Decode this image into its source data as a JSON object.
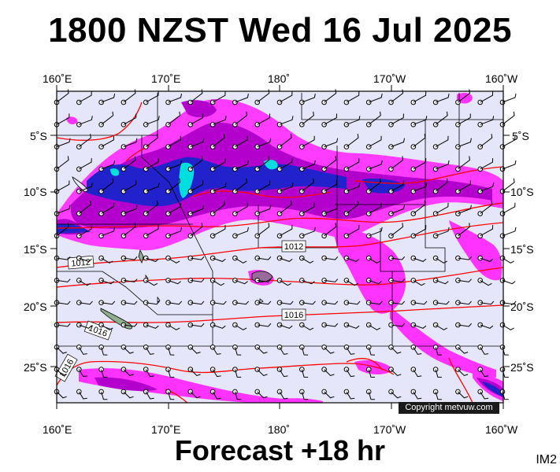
{
  "title": "1800 NZST Wed 16 Jul 2025",
  "footer": "Forecast +18 hr",
  "product_code": "IM2",
  "copyright": "Copyright metvuw.com",
  "lon_labels": [
    "160˚E",
    "170˚E",
    "180˚",
    "170˚W",
    "160˚W"
  ],
  "lat_labels": [
    "5˚S",
    "10˚S",
    "15˚S",
    "20˚S",
    "25˚S"
  ],
  "isobar_labels": [
    "1012",
    "1012",
    "1016",
    "1016",
    "1016"
  ],
  "colors": {
    "background": "#e6e6fa",
    "rain_light": "#ff33ff",
    "rain_moderate": "#b300cc",
    "rain_heavy": "#2222cc",
    "rain_extreme": "#00dddd",
    "isobar": "#ff0000",
    "coast": "#000000"
  }
}
